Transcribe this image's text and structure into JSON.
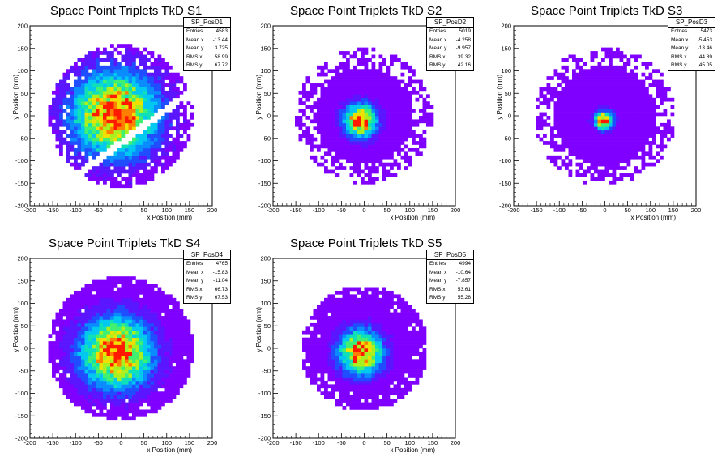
{
  "colors": {
    "palette": [
      "#8000ff",
      "#5a16ff",
      "#1f4dff",
      "#0a8cff",
      "#00c8f0",
      "#10e0b8",
      "#40f070",
      "#a8f020",
      "#f0e000",
      "#ff8000",
      "#ff1a00"
    ]
  },
  "chart_data": [
    {
      "type": "heatmap",
      "title": "Space Point Triplets TkD S1",
      "xlabel": "x Position (mm)",
      "ylabel": "y Position (mm)",
      "xlim": [
        -200,
        200
      ],
      "ylim": [
        -200,
        200
      ],
      "xticks": [
        "-200",
        "-150",
        "-100",
        "-50",
        "0",
        "50",
        "100",
        "150",
        "200"
      ],
      "yticks": [
        "-200",
        "-150",
        "-100",
        "-50",
        "0",
        "50",
        "100",
        "150",
        "200"
      ],
      "bin_size_mm": 8,
      "radius_mm": 158,
      "center_mm": [
        -13,
        4
      ],
      "spread_mm": 62,
      "occupancy": 0.8,
      "gap_band": {
        "slope": 0.75,
        "intercept_mm": -60,
        "half_width_mm": 8
      },
      "stats": {
        "name": "SP_PosD1",
        "rows": [
          [
            "Entries",
            "4583"
          ],
          [
            "Mean x",
            "-13.44"
          ],
          [
            "Mean y",
            "3.725"
          ],
          [
            "RMS x",
            "58.99"
          ],
          [
            "RMS y",
            "67.72"
          ]
        ]
      }
    },
    {
      "type": "heatmap",
      "title": "Space Point Triplets TkD S2",
      "xlabel": "x Position (mm)",
      "ylabel": "y Position (mm)",
      "xlim": [
        -200,
        200
      ],
      "ylim": [
        -200,
        200
      ],
      "xticks": [
        "-200",
        "-150",
        "-100",
        "-50",
        "0",
        "50",
        "100",
        "150",
        "200"
      ],
      "yticks": [
        "-200",
        "-150",
        "-100",
        "-50",
        "0",
        "50",
        "100",
        "150",
        "200"
      ],
      "bin_size_mm": 8,
      "radius_mm": 150,
      "center_mm": [
        -8,
        -10
      ],
      "spread_mm": 24,
      "occupancy": 0.55,
      "stats": {
        "name": "SP_PosD2",
        "rows": [
          [
            "Entries",
            "5019"
          ],
          [
            "Mean x",
            "-4.258"
          ],
          [
            "Mean y",
            "-9.957"
          ],
          [
            "RMS x",
            "39.32"
          ],
          [
            "RMS y",
            "42.16"
          ]
        ]
      }
    },
    {
      "type": "heatmap",
      "title": "Space Point Triplets TkD S3",
      "xlabel": "x Position (mm)",
      "ylabel": "y Position (mm)",
      "xlim": [
        -200,
        200
      ],
      "ylim": [
        -200,
        200
      ],
      "xticks": [
        "-200",
        "-150",
        "-100",
        "-50",
        "0",
        "50",
        "100",
        "150",
        "200"
      ],
      "yticks": [
        "-200",
        "-150",
        "-100",
        "-50",
        "0",
        "50",
        "100",
        "150",
        "200"
      ],
      "bin_size_mm": 8,
      "radius_mm": 155,
      "center_mm": [
        -2,
        -10
      ],
      "spread_mm": 14,
      "occupancy": 0.5,
      "stats": {
        "name": "SP_PosD3",
        "rows": [
          [
            "Entries",
            "5473"
          ],
          [
            "Mean x",
            "-5.453"
          ],
          [
            "Mean y",
            "-13.46"
          ],
          [
            "RMS x",
            "44.89"
          ],
          [
            "RMS y",
            "45.05"
          ]
        ]
      }
    },
    {
      "type": "heatmap",
      "title": "Space Point Triplets TkD S4",
      "xlabel": "x Position (mm)",
      "ylabel": "y Position (mm)",
      "xlim": [
        -200,
        200
      ],
      "ylim": [
        -200,
        200
      ],
      "xticks": [
        "-200",
        "-150",
        "-100",
        "-50",
        "0",
        "50",
        "100",
        "150",
        "200"
      ],
      "yticks": [
        "-200",
        "-150",
        "-100",
        "-50",
        "0",
        "50",
        "100",
        "150",
        "200"
      ],
      "bin_size_mm": 8,
      "radius_mm": 160,
      "center_mm": [
        -10,
        -10
      ],
      "spread_mm": 52,
      "occupancy": 0.95,
      "stats": {
        "name": "SP_PosD4",
        "rows": [
          [
            "Entries",
            "4765"
          ],
          [
            "Mean x",
            "-15.83"
          ],
          [
            "Mean y",
            "-11.04"
          ],
          [
            "RMS x",
            "66.73"
          ],
          [
            "RMS y",
            "67.53"
          ]
        ]
      }
    },
    {
      "type": "heatmap",
      "title": "Space Point Triplets TkD S5",
      "xlabel": "x Position (mm)",
      "ylabel": "y Position (mm)",
      "xlim": [
        -200,
        200
      ],
      "ylim": [
        -200,
        200
      ],
      "xticks": [
        "-200",
        "-150",
        "-100",
        "-50",
        "0",
        "50",
        "100",
        "150",
        "200"
      ],
      "yticks": [
        "-200",
        "-150",
        "-100",
        "-50",
        "0",
        "50",
        "100",
        "150",
        "200"
      ],
      "bin_size_mm": 8,
      "radius_mm": 140,
      "center_mm": [
        -8,
        -8
      ],
      "spread_mm": 32,
      "occupancy": 0.85,
      "stats": {
        "name": "SP_PosD5",
        "rows": [
          [
            "Entries",
            "4994"
          ],
          [
            "Mean x",
            "-10.64"
          ],
          [
            "Mean y",
            "-7.857"
          ],
          [
            "RMS x",
            "53.61"
          ],
          [
            "RMS y",
            "55.28"
          ]
        ]
      }
    }
  ]
}
